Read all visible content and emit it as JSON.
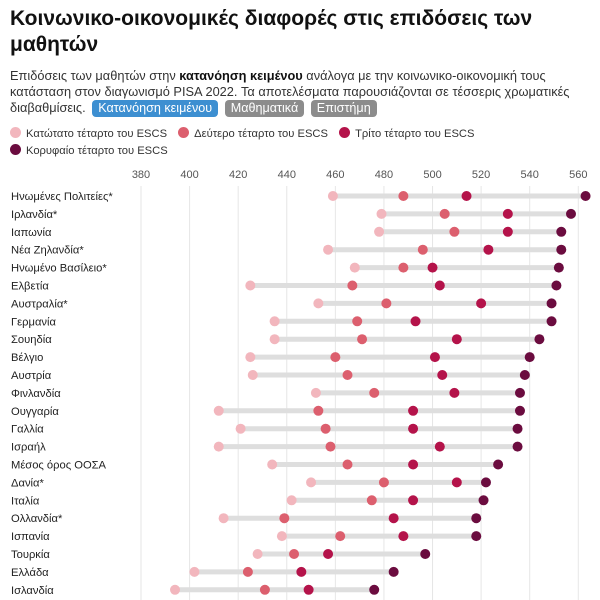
{
  "title": "Κοινωνικο-οικονομικές διαφορές στις επιδόσεις των μαθητών",
  "subtitle": {
    "before": "Επιδόσεις των μαθητών στην ",
    "bold": "κατανόηση κειμένου",
    "after": " ανάλογα με την κοινωνικο-οικονομική τους κατάσταση στον διαγωνισμό PISA 2022. Τα αποτελέσματα παρουσιάζονται σε τέσσερις χρωματικές διαβαθμίσεις."
  },
  "buttons": [
    {
      "label": "Κατανόηση κειμένου",
      "active": true
    },
    {
      "label": "Μαθηματικά",
      "active": false
    },
    {
      "label": "Επιστήμη",
      "active": false
    }
  ],
  "colors": {
    "q1": "#f2b6bd",
    "q2": "#dc5f6e",
    "q3": "#b4134a",
    "q4": "#6b0c3f",
    "range": "#dedede",
    "grid": "#e6e6e6"
  },
  "chart_data": {
    "type": "scatter",
    "x_ticks": [
      380,
      400,
      420,
      440,
      460,
      480,
      500,
      520,
      540,
      560
    ],
    "xlim": [
      373,
      564
    ],
    "series": [
      {
        "name": "Κατώτατο τέταρτο του ESCS",
        "key": "q1"
      },
      {
        "name": "Δεύτερο τέταρτο του ESCS",
        "key": "q2"
      },
      {
        "name": "Τρίτο τέταρτο του ESCS",
        "key": "q3"
      },
      {
        "name": "Κορυφαίο τέταρτο του ESCS",
        "key": "q4"
      }
    ],
    "rows": [
      {
        "label": "Ηνωμένες Πολιτείες*",
        "q1": 459,
        "q2": 488,
        "q3": 514,
        "q4": 563
      },
      {
        "label": "Ιρλανδία*",
        "q1": 479,
        "q2": 505,
        "q3": 531,
        "q4": 557
      },
      {
        "label": "Ιαπωνία",
        "q1": 478,
        "q2": 509,
        "q3": 531,
        "q4": 553
      },
      {
        "label": "Νέα Ζηλανδία*",
        "q1": 457,
        "q2": 496,
        "q3": 523,
        "q4": 553
      },
      {
        "label": "Ηνωμένο Βασίλειο*",
        "q1": 468,
        "q2": 488,
        "q3": 500,
        "q4": 552
      },
      {
        "label": "Ελβετία",
        "q1": 425,
        "q2": 467,
        "q3": 503,
        "q4": 551
      },
      {
        "label": "Αυστραλία*",
        "q1": 453,
        "q2": 481,
        "q3": 520,
        "q4": 549
      },
      {
        "label": "Γερμανία",
        "q1": 435,
        "q2": 469,
        "q3": 493,
        "q4": 549
      },
      {
        "label": "Σουηδία",
        "q1": 435,
        "q2": 471,
        "q3": 510,
        "q4": 544
      },
      {
        "label": "Βέλγιο",
        "q1": 425,
        "q2": 460,
        "q3": 501,
        "q4": 540
      },
      {
        "label": "Αυστρία",
        "q1": 426,
        "q2": 465,
        "q3": 504,
        "q4": 538
      },
      {
        "label": "Φινλανδία",
        "q1": 452,
        "q2": 476,
        "q3": 509,
        "q4": 536
      },
      {
        "label": "Ουγγαρία",
        "q1": 412,
        "q2": 453,
        "q3": 492,
        "q4": 536
      },
      {
        "label": "Γαλλία",
        "q1": 421,
        "q2": 456,
        "q3": 492,
        "q4": 535
      },
      {
        "label": "Ισραήλ",
        "q1": 412,
        "q2": 458,
        "q3": 503,
        "q4": 535
      },
      {
        "label": "Μέσος όρος ΟΟΣΑ",
        "q1": 434,
        "q2": 465,
        "q3": 492,
        "q4": 527
      },
      {
        "label": "Δανία*",
        "q1": 450,
        "q2": 480,
        "q3": 510,
        "q4": 522
      },
      {
        "label": "Ιταλία",
        "q1": 442,
        "q2": 475,
        "q3": 492,
        "q4": 521
      },
      {
        "label": "Ολλανδία*",
        "q1": 414,
        "q2": 439,
        "q3": 484,
        "q4": 518
      },
      {
        "label": "Ισπανία",
        "q1": 438,
        "q2": 462,
        "q3": 488,
        "q4": 518
      },
      {
        "label": "Τουρκία",
        "q1": 428,
        "q2": 443,
        "q3": 457,
        "q4": 497
      },
      {
        "label": "Ελλάδα",
        "q1": 402,
        "q2": 424,
        "q3": 446,
        "q4": 484
      },
      {
        "label": "Ισλανδία",
        "q1": 394,
        "q2": 431,
        "q3": 449,
        "q4": 476
      }
    ]
  }
}
